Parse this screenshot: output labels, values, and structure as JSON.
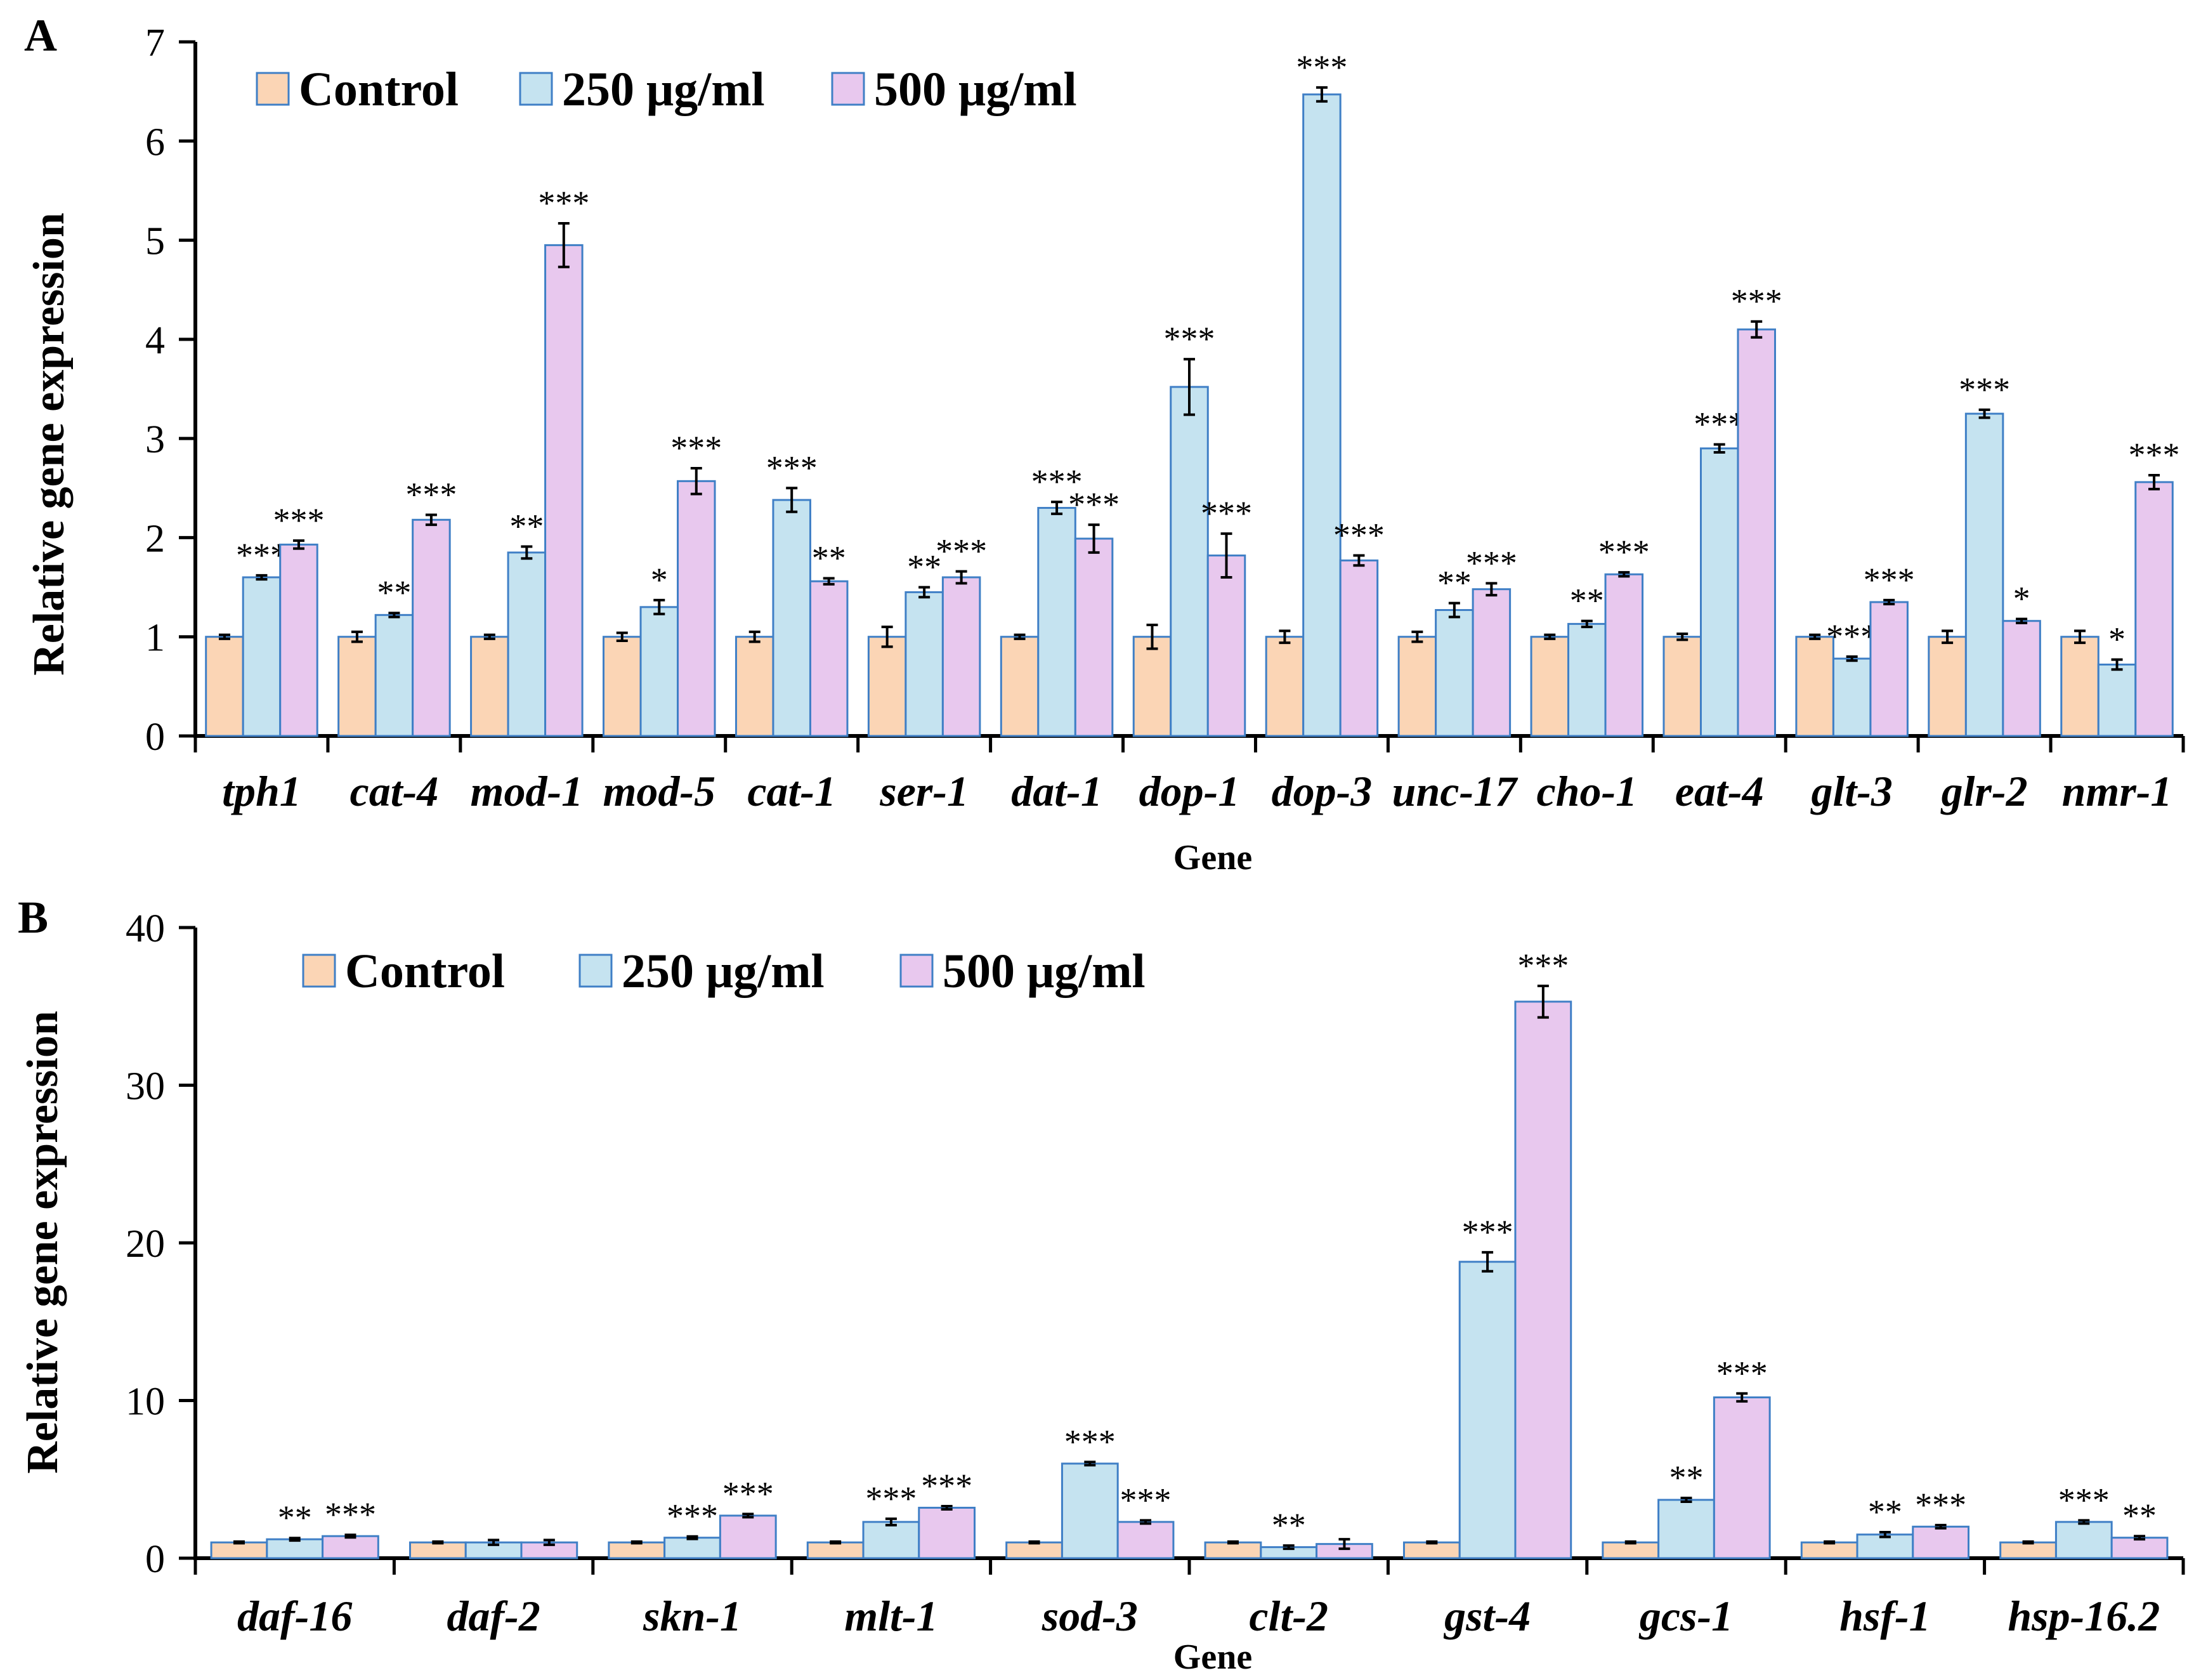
{
  "chart_data": [
    {
      "panel": "A",
      "type": "bar",
      "title": "",
      "xlabel": "Gene",
      "ylabel": "Relative gene expression",
      "ylim": [
        0,
        7
      ],
      "yticks": [
        "0",
        "1",
        "2",
        "3",
        "4",
        "5",
        "6",
        "7"
      ],
      "legend_position": "top-left",
      "categories": [
        "tph1",
        "cat-4",
        "mod-1",
        "mod-5",
        "cat-1",
        "ser-1",
        "dat-1",
        "dop-1",
        "dop-3",
        "unc-17",
        "cho-1",
        "eat-4",
        "glt-3",
        "glr-2",
        "nmr-1"
      ],
      "series": [
        {
          "name": "Control",
          "color": "#FBD5B5",
          "values": [
            1,
            1,
            1,
            1,
            1,
            1,
            1,
            1,
            1,
            1,
            1,
            1,
            1,
            1,
            1
          ],
          "errors": [
            0.02,
            0.05,
            0.02,
            0.04,
            0.05,
            0.1,
            0.02,
            0.12,
            0.06,
            0.05,
            0.02,
            0.03,
            0.02,
            0.06,
            0.06
          ],
          "significance": [
            "",
            "",
            "",
            "",
            "",
            "",
            "",
            "",
            "",
            "",
            "",
            "",
            "",
            "",
            ""
          ]
        },
        {
          "name": "250 μg/ml",
          "color": "#C5E3F0",
          "values": [
            1.6,
            1.22,
            1.85,
            1.3,
            2.38,
            1.45,
            2.3,
            3.52,
            6.47,
            1.27,
            1.13,
            2.9,
            0.78,
            3.25,
            0.72
          ],
          "errors": [
            0.02,
            0.02,
            0.06,
            0.07,
            0.12,
            0.05,
            0.06,
            0.28,
            0.07,
            0.07,
            0.03,
            0.04,
            0.02,
            0.04,
            0.05
          ],
          "significance": [
            "***",
            "**",
            "**",
            "*",
            "***",
            "**",
            "***",
            "***",
            "***",
            "**",
            "**",
            "***",
            "***",
            "***",
            "*"
          ]
        },
        {
          "name": "500 μg/ml",
          "color": "#E8C8EE",
          "values": [
            1.93,
            2.18,
            4.95,
            2.57,
            1.56,
            1.6,
            1.99,
            1.82,
            1.77,
            1.48,
            1.63,
            4.1,
            1.35,
            1.16,
            2.56
          ],
          "errors": [
            0.04,
            0.05,
            0.22,
            0.13,
            0.03,
            0.06,
            0.14,
            0.22,
            0.05,
            0.06,
            0.02,
            0.08,
            0.02,
            0.02,
            0.07
          ],
          "significance": [
            "***",
            "***",
            "***",
            "***",
            "**",
            "***",
            "***",
            "***",
            "***",
            "***",
            "***",
            "***",
            "***",
            "*",
            "***"
          ]
        }
      ]
    },
    {
      "panel": "B",
      "type": "bar",
      "title": "",
      "xlabel": "Gene",
      "ylabel": "Relative gene expression",
      "ylim": [
        0,
        40
      ],
      "yticks": [
        "0",
        "10",
        "20",
        "30",
        "40"
      ],
      "legend_position": "top-left",
      "categories": [
        "daf-16",
        "daf-2",
        "skn-1",
        "mlt-1",
        "sod-3",
        "clt-2",
        "gst-4",
        "gcs-1",
        "hsf-1",
        "hsp-16.2"
      ],
      "series": [
        {
          "name": "Control",
          "color": "#FBD5B5",
          "values": [
            1,
            1,
            1,
            1,
            1,
            1,
            1,
            1,
            1,
            1
          ],
          "errors": [
            0.05,
            0.05,
            0.05,
            0.05,
            0.05,
            0.05,
            0.05,
            0.05,
            0.05,
            0.05
          ],
          "significance": [
            "",
            "",
            "",
            "",
            "",
            "",
            "",
            "",
            "",
            ""
          ]
        },
        {
          "name": "250 μg/ml",
          "color": "#C5E3F0",
          "values": [
            1.2,
            1.0,
            1.3,
            2.3,
            6.0,
            0.7,
            18.8,
            3.7,
            1.5,
            2.3
          ],
          "errors": [
            0.08,
            0.15,
            0.08,
            0.2,
            0.1,
            0.1,
            0.6,
            0.12,
            0.15,
            0.1
          ],
          "significance": [
            "**",
            "",
            "***",
            "***",
            "***",
            "**",
            "***",
            "**",
            "**",
            "***"
          ]
        },
        {
          "name": "500 μg/ml",
          "color": "#E8C8EE",
          "values": [
            1.4,
            1.0,
            2.7,
            3.2,
            2.3,
            0.9,
            35.3,
            10.2,
            2.0,
            1.3
          ],
          "errors": [
            0.08,
            0.15,
            0.1,
            0.1,
            0.1,
            0.3,
            1.0,
            0.25,
            0.1,
            0.1
          ],
          "significance": [
            "***",
            "",
            "***",
            "***",
            "***",
            "",
            "***",
            "***",
            "***",
            "**"
          ]
        }
      ]
    }
  ]
}
